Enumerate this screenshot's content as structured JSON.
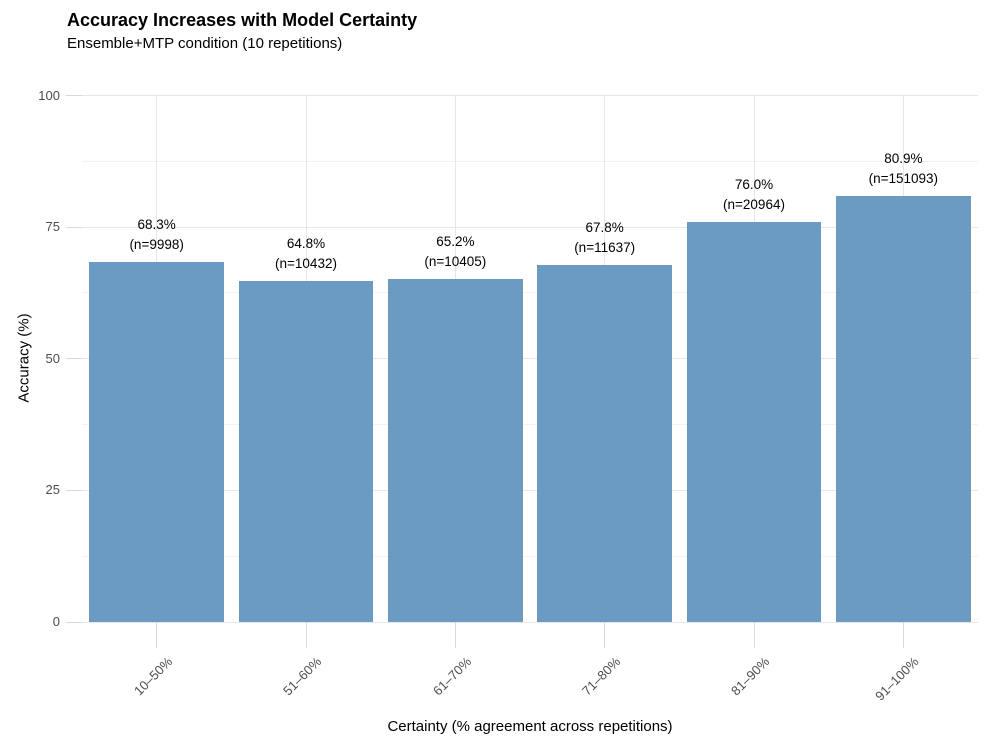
{
  "chart_data": {
    "type": "bar",
    "title": "Accuracy Increases with Model Certainty",
    "subtitle": "Ensemble+MTP condition (10 repetitions)",
    "xlabel": "Certainty (% agreement across repetitions)",
    "ylabel": "Accuracy (%)",
    "categories": [
      "10–50%",
      "51–60%",
      "61–70%",
      "71–80%",
      "81–90%",
      "91–100%"
    ],
    "values": [
      68.3,
      64.8,
      65.2,
      67.8,
      76.0,
      80.9
    ],
    "counts": [
      9998,
      10432,
      10405,
      11637,
      20964,
      151093
    ],
    "value_labels": [
      "68.3%",
      "64.8%",
      "65.2%",
      "67.8%",
      "76.0%",
      "80.9%"
    ],
    "count_labels": [
      "(n=9998)",
      "(n=10432)",
      "(n=10405)",
      "(n=11637)",
      "(n=20964)",
      "(n=151093)"
    ],
    "ylim": [
      0,
      100
    ],
    "yticks": [
      0,
      25,
      50,
      75,
      100
    ],
    "ytick_labels": [
      "0",
      "25",
      "50",
      "75",
      "100"
    ],
    "y_minor_ticks": [
      12.5,
      37.5,
      62.5,
      87.5
    ],
    "grid": true,
    "legend": "none",
    "bar_width_fraction": 0.9,
    "colors": {
      "bar": "#6b9ac3",
      "grid_major": "#e7e7e7",
      "grid_minor": "#f2f2f2",
      "tick": "#d9d9d9",
      "axis_text": "#4d4d4d",
      "text": "#000000",
      "background": "#ffffff"
    }
  }
}
